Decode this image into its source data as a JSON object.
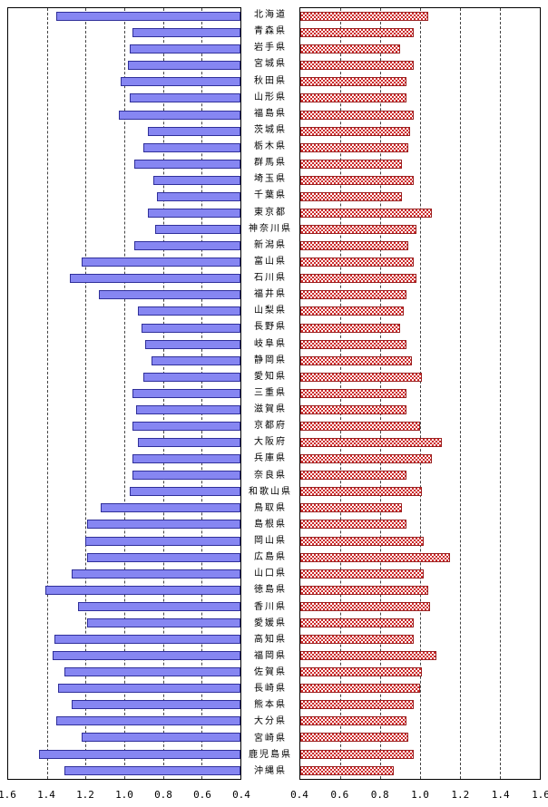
{
  "chart_data": {
    "type": "bar",
    "subtype": "bilateral-horizontal-pyramid",
    "title": "",
    "grid": "dashed-vertical",
    "value_min": 0.4,
    "value_max": 1.6,
    "left_axis_ticks": [
      "1.6",
      "1.4",
      "1.2",
      "1.0",
      "0.8",
      "0.6",
      "0.4"
    ],
    "right_axis_ticks": [
      "0.4",
      "0.6",
      "0.8",
      "1.0",
      "1.2",
      "1.4",
      "1.6"
    ],
    "left_series_color": "#8686f2",
    "right_series_color": "#cc2a2a",
    "categories": [
      "北海道",
      "青森県",
      "岩手県",
      "宮城県",
      "秋田県",
      "山形県",
      "福島県",
      "茨城県",
      "栃木県",
      "群馬県",
      "埼玉県",
      "千葉県",
      "東京都",
      "神奈川県",
      "新潟県",
      "富山県",
      "石川県",
      "福井県",
      "山梨県",
      "長野県",
      "岐阜県",
      "静岡県",
      "愛知県",
      "三重県",
      "滋賀県",
      "京都府",
      "大阪府",
      "兵庫県",
      "奈良県",
      "和歌山県",
      "鳥取県",
      "島根県",
      "岡山県",
      "広島県",
      "山口県",
      "徳島県",
      "香川県",
      "愛媛県",
      "高知県",
      "福岡県",
      "佐賀県",
      "長崎県",
      "熊本県",
      "大分県",
      "宮崎県",
      "鹿児島県",
      "沖縄県"
    ],
    "series": [
      {
        "name": "left",
        "values": [
          1.35,
          0.96,
          0.97,
          0.98,
          1.02,
          0.97,
          1.03,
          0.88,
          0.9,
          0.95,
          0.85,
          0.83,
          0.88,
          0.84,
          0.95,
          1.22,
          1.28,
          1.13,
          0.93,
          0.91,
          0.89,
          0.86,
          0.9,
          0.96,
          0.94,
          0.96,
          0.93,
          0.96,
          0.96,
          0.97,
          1.12,
          1.19,
          1.2,
          1.19,
          1.27,
          1.41,
          1.24,
          1.19,
          1.36,
          1.37,
          1.31,
          1.34,
          1.27,
          1.35,
          1.22,
          1.44,
          1.31
        ]
      },
      {
        "name": "right",
        "values": [
          1.04,
          0.97,
          0.9,
          0.97,
          0.93,
          0.93,
          0.97,
          0.95,
          0.94,
          0.91,
          0.97,
          0.91,
          1.06,
          0.98,
          0.94,
          0.97,
          0.98,
          0.93,
          0.92,
          0.9,
          0.93,
          0.96,
          1.01,
          0.93,
          0.93,
          1.0,
          1.11,
          1.06,
          0.93,
          1.01,
          0.91,
          0.93,
          1.02,
          1.15,
          1.02,
          1.04,
          1.05,
          0.97,
          0.97,
          1.08,
          1.01,
          1.0,
          0.97,
          0.93,
          0.94,
          0.97,
          0.87
        ]
      }
    ]
  }
}
